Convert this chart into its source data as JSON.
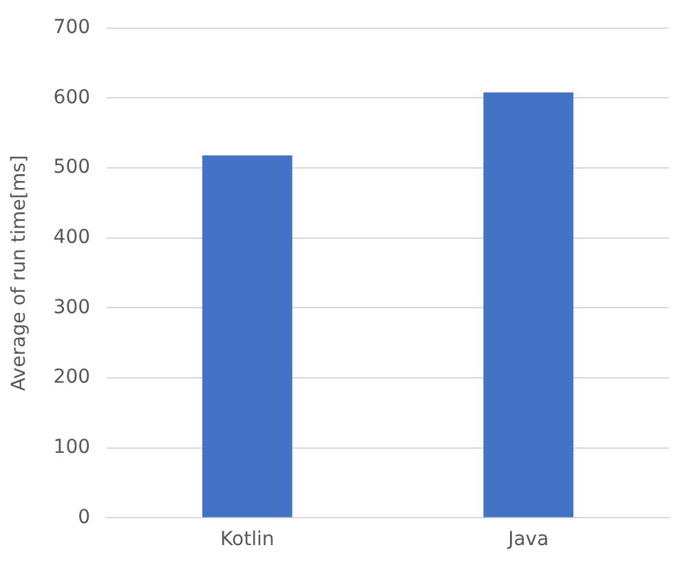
{
  "chart_data": {
    "type": "bar",
    "ylabel": "Average of run time[ms]",
    "categories": [
      "Kotlin",
      "Java"
    ],
    "values": [
      518,
      608
    ],
    "color": "#4472c4",
    "ylim": [
      0,
      700
    ],
    "yticks": [
      0,
      100,
      200,
      300,
      400,
      500,
      600,
      700
    ],
    "grid": "y",
    "legend": false
  }
}
